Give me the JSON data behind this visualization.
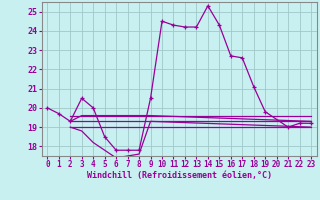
{
  "xlabel": "Windchill (Refroidissement éolien,°C)",
  "background_color": "#c8f0f0",
  "grid_color": "#a0c8c8",
  "line_color": "#990099",
  "xlim": [
    -0.5,
    23.5
  ],
  "ylim": [
    17.5,
    25.5
  ],
  "yticks": [
    18,
    19,
    20,
    21,
    22,
    23,
    24,
    25
  ],
  "xticks": [
    0,
    1,
    2,
    3,
    4,
    5,
    6,
    7,
    8,
    9,
    10,
    11,
    12,
    13,
    14,
    15,
    16,
    17,
    18,
    19,
    20,
    21,
    22,
    23
  ],
  "series_main": {
    "x": [
      0,
      1,
      2,
      3,
      4,
      5,
      6,
      7,
      8,
      9,
      10,
      11,
      12,
      13,
      14,
      15,
      16,
      17,
      18,
      19,
      21,
      22,
      23
    ],
    "y": [
      20.0,
      19.7,
      19.3,
      20.5,
      20.0,
      18.5,
      17.8,
      17.8,
      17.8,
      20.5,
      24.5,
      24.3,
      24.2,
      24.2,
      25.3,
      24.3,
      22.7,
      22.6,
      21.1,
      19.8,
      19.0,
      19.2,
      19.2
    ]
  },
  "series_flat1": {
    "x": [
      2,
      23
    ],
    "y": [
      19.3,
      19.3
    ]
  },
  "series_flat2": {
    "x": [
      2,
      23
    ],
    "y": [
      19.0,
      19.0
    ]
  },
  "series_flat3": {
    "x": [
      2,
      23
    ],
    "y": [
      19.6,
      19.6
    ]
  },
  "series_minmax_low": {
    "x": [
      2,
      3,
      4,
      5,
      6,
      7,
      8,
      9,
      23
    ],
    "y": [
      19.0,
      18.8,
      18.2,
      17.8,
      17.4,
      17.5,
      17.6,
      19.3,
      19.0
    ]
  },
  "series_minmax_high": {
    "x": [
      2,
      3,
      4,
      5,
      6,
      7,
      8,
      9,
      23
    ],
    "y": [
      19.3,
      19.6,
      19.6,
      19.6,
      19.6,
      19.6,
      19.6,
      19.6,
      19.3
    ]
  }
}
